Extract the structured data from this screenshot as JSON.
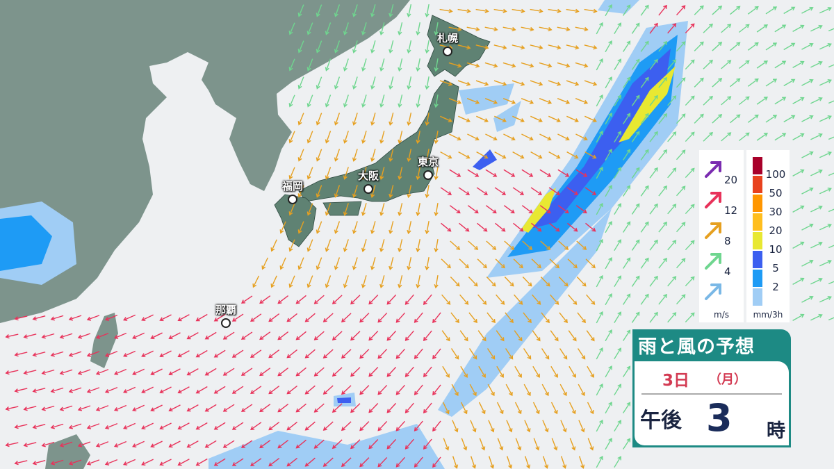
{
  "map": {
    "cities": [
      {
        "name": "札幌"
      },
      {
        "name": "東京"
      },
      {
        "name": "大阪"
      },
      {
        "name": "福岡"
      },
      {
        "name": "那覇"
      }
    ],
    "colors": {
      "sea": "#eef0f2",
      "land_continent": "#7d948c",
      "land_japan": "#5f8273"
    }
  },
  "wind_legend": {
    "unit": "m/s",
    "levels": [
      {
        "value": "20",
        "color": "#7a2bb0"
      },
      {
        "value": "12",
        "color": "#e8325a"
      },
      {
        "value": "8",
        "color": "#e6a020"
      },
      {
        "value": "4",
        "color": "#6fd68f"
      },
      {
        "value": "",
        "color": "#7ab8e6"
      }
    ]
  },
  "rain_legend": {
    "unit": "mm/3h",
    "levels": [
      {
        "value": "100",
        "color": "#a8002a"
      },
      {
        "value": "50",
        "color": "#e8421e"
      },
      {
        "value": "30",
        "color": "#ff9600"
      },
      {
        "value": "20",
        "color": "#ffbe1e"
      },
      {
        "value": "10",
        "color": "#e8e832"
      },
      {
        "value": "5",
        "color": "#3c5ff0"
      },
      {
        "value": "2",
        "color": "#1e9bf5"
      },
      {
        "value": "",
        "color": "#a0cdf5"
      }
    ]
  },
  "forecast": {
    "title": "雨と風の予想",
    "date": "3日",
    "day_of_week": "（月）",
    "ampm": "午後",
    "hour": "3",
    "hour_unit": "時"
  }
}
